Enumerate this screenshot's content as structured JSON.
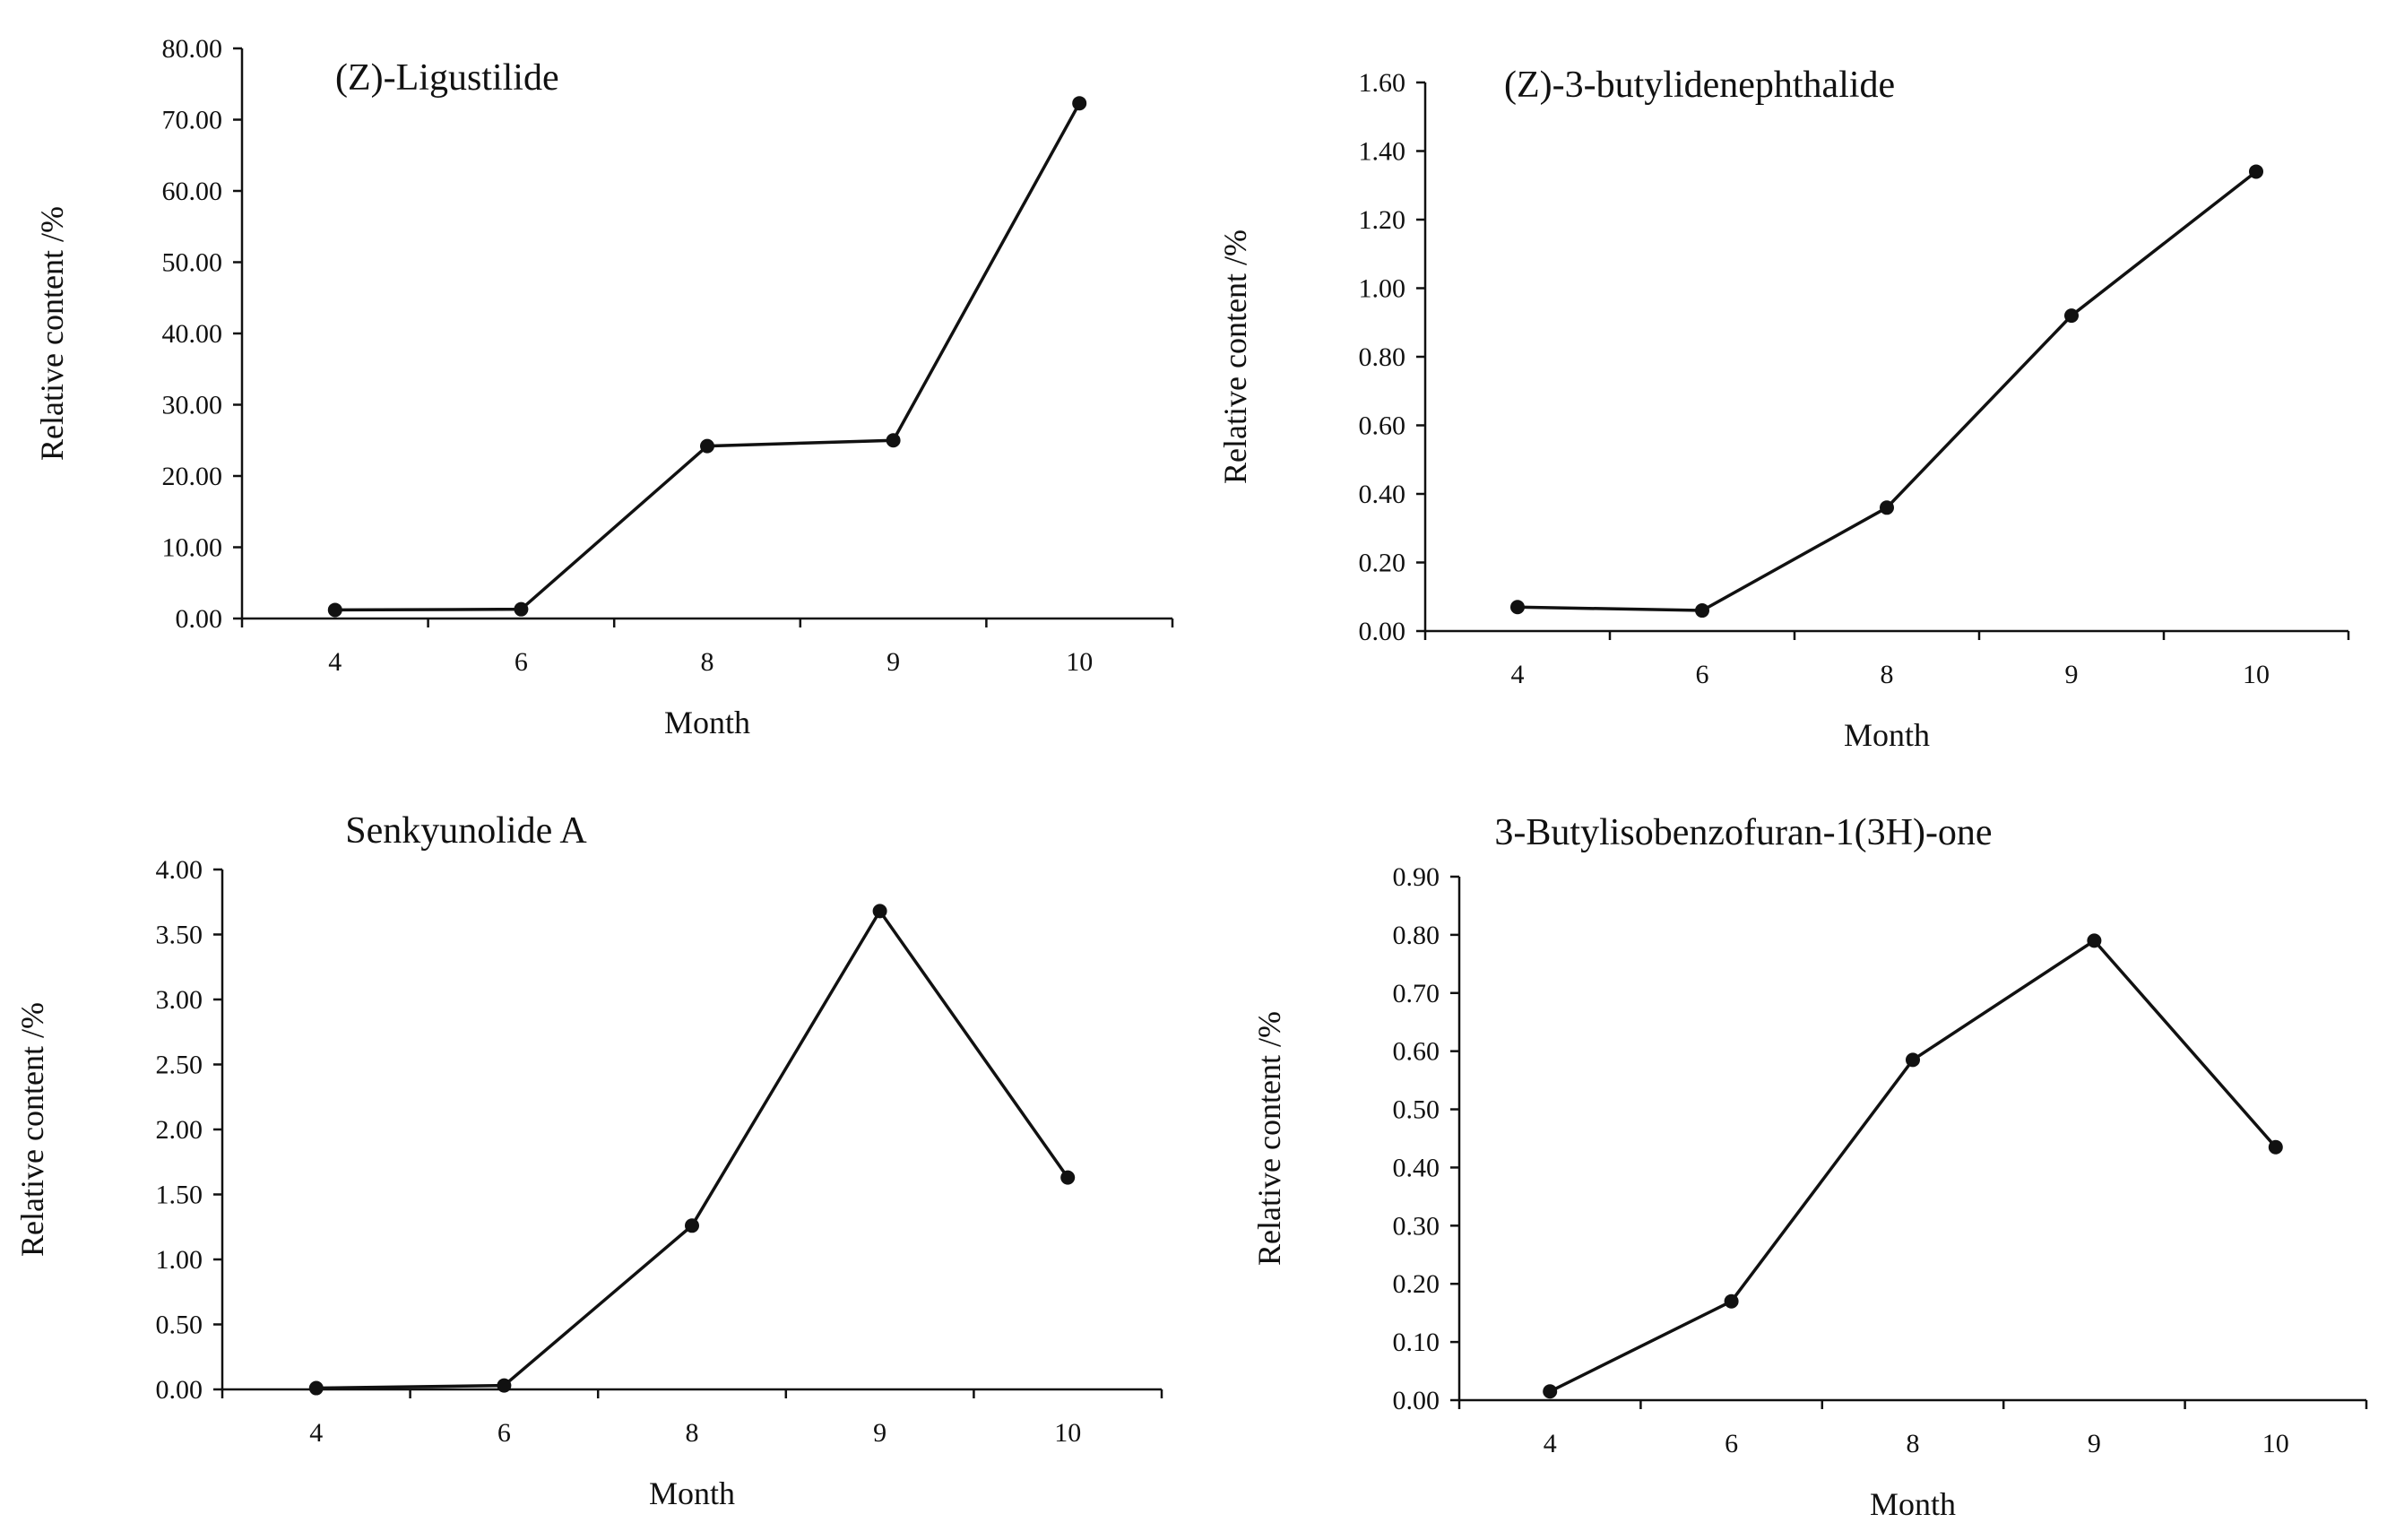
{
  "chart_data": [
    {
      "type": "line",
      "title": "(Z)-Ligustilide",
      "xlabel": "Month",
      "ylabel": "Relative content /%",
      "categories": [
        "4",
        "6",
        "8",
        "9",
        "10"
      ],
      "values": [
        1.2,
        1.3,
        24.2,
        25.0,
        72.3
      ],
      "ylim": [
        0,
        80
      ],
      "yticks": [
        "0.00",
        "10.00",
        "20.00",
        "30.00",
        "40.00",
        "50.00",
        "60.00",
        "70.00",
        "80.00"
      ],
      "grid": false
    },
    {
      "type": "line",
      "title": "(Z)-3-butylidenephthalide",
      "xlabel": "Month",
      "ylabel": "Relative content /%",
      "categories": [
        "4",
        "6",
        "8",
        "9",
        "10"
      ],
      "values": [
        0.07,
        0.06,
        0.36,
        0.92,
        1.34
      ],
      "ylim": [
        0,
        1.6
      ],
      "yticks": [
        "0.00",
        "0.20",
        "0.40",
        "0.60",
        "0.80",
        "1.00",
        "1.20",
        "1.40",
        "1.60"
      ],
      "grid": false
    },
    {
      "type": "line",
      "title": "Senkyunolide A",
      "xlabel": "Month",
      "ylabel": "Relative content /%",
      "categories": [
        "4",
        "6",
        "8",
        "9",
        "10"
      ],
      "values": [
        0.01,
        0.03,
        1.26,
        3.68,
        1.63
      ],
      "ylim": [
        0,
        4
      ],
      "yticks": [
        "0.00",
        "0.50",
        "1.00",
        "1.50",
        "2.00",
        "2.50",
        "3.00",
        "3.50",
        "4.00"
      ],
      "grid": false
    },
    {
      "type": "line",
      "title": "3-Butylisobenzofuran-1(3H)-one",
      "xlabel": "Month",
      "ylabel": "Relative content /%",
      "categories": [
        "4",
        "6",
        "8",
        "9",
        "10"
      ],
      "values": [
        0.015,
        0.17,
        0.585,
        0.79,
        0.435
      ],
      "ylim": [
        0,
        0.9
      ],
      "yticks": [
        "0.00",
        "0.10",
        "0.20",
        "0.30",
        "0.40",
        "0.50",
        "0.60",
        "0.70",
        "0.80",
        "0.90"
      ],
      "grid": false
    }
  ]
}
